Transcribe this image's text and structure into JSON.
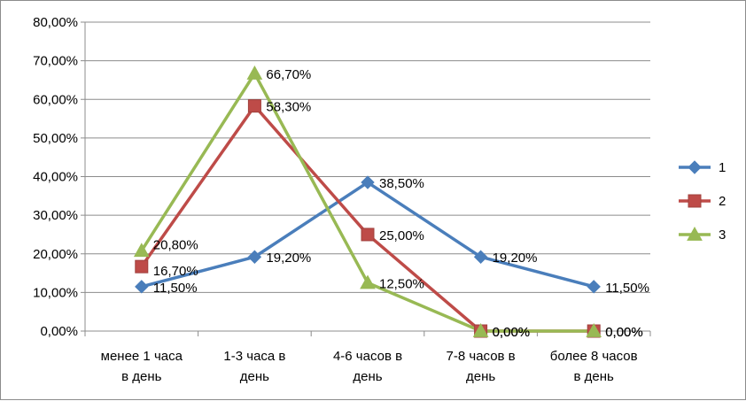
{
  "chart_data": {
    "type": "line",
    "categories": [
      [
        "менее 1 часа",
        "в день"
      ],
      [
        "1-3 часа в",
        "день"
      ],
      [
        "4-6 часов в",
        "день"
      ],
      [
        "7-8 часов в",
        "день"
      ],
      [
        "более 8 часов",
        "в день"
      ]
    ],
    "y_ticks": [
      "0,00%",
      "10,00%",
      "20,00%",
      "30,00%",
      "40,00%",
      "50,00%",
      "60,00%",
      "70,00%",
      "80,00%"
    ],
    "ylim": [
      0,
      80
    ],
    "grid": true,
    "legend_position": "right",
    "series": [
      {
        "name": "1",
        "color": "#4a7ebb",
        "marker": "diamond",
        "values": [
          11.5,
          19.2,
          38.5,
          19.2,
          11.5
        ],
        "labels": [
          "11,50%",
          "19,20%",
          "38,50%",
          "19,20%",
          "11,50%"
        ]
      },
      {
        "name": "2",
        "color": "#be4b48",
        "marker": "square",
        "values": [
          16.7,
          58.3,
          25.0,
          0.0,
          0.0
        ],
        "labels": [
          "16,70%",
          "58,30%",
          "25,00%",
          "0,00%",
          "0,00%"
        ]
      },
      {
        "name": "3",
        "color": "#98b954",
        "marker": "triangle",
        "values": [
          20.8,
          66.7,
          12.5,
          0.0,
          0.0
        ],
        "labels": [
          "20,80%",
          "66,70%",
          "12,50%",
          "0,00%",
          "0,00%"
        ]
      }
    ]
  }
}
